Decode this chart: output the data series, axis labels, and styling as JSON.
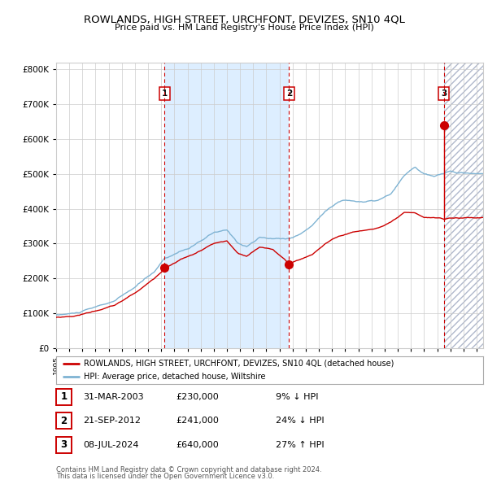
{
  "title": "ROWLANDS, HIGH STREET, URCHFONT, DEVIZES, SN10 4QL",
  "subtitle": "Price paid vs. HM Land Registry's House Price Index (HPI)",
  "transactions": [
    {
      "date": "2003-03-31",
      "price": 230000,
      "label": "1"
    },
    {
      "date": "2012-09-21",
      "price": 241000,
      "label": "2"
    },
    {
      "date": "2024-07-08",
      "price": 640000,
      "label": "3"
    }
  ],
  "table_rows": [
    {
      "num": "1",
      "date": "31-MAR-2003",
      "price": "£230,000",
      "hpi": "9% ↓ HPI"
    },
    {
      "num": "2",
      "date": "21-SEP-2012",
      "price": "£241,000",
      "hpi": "24% ↓ HPI"
    },
    {
      "num": "3",
      "date": "08-JUL-2024",
      "price": "£640,000",
      "hpi": "27% ↑ HPI"
    }
  ],
  "legend_red": "ROWLANDS, HIGH STREET, URCHFONT, DEVIZES, SN10 4QL (detached house)",
  "legend_blue": "HPI: Average price, detached house, Wiltshire",
  "footer1": "Contains HM Land Registry data © Crown copyright and database right 2024.",
  "footer2": "This data is licensed under the Open Government Licence v3.0.",
  "ylim": [
    0,
    820000
  ],
  "red_color": "#cc0000",
  "blue_color": "#7fb3d3",
  "bg_color": "#ffffff",
  "shaded_bg": "#ddeeff",
  "hatch_color": "#b0b8cc",
  "grid_color": "#cccccc"
}
